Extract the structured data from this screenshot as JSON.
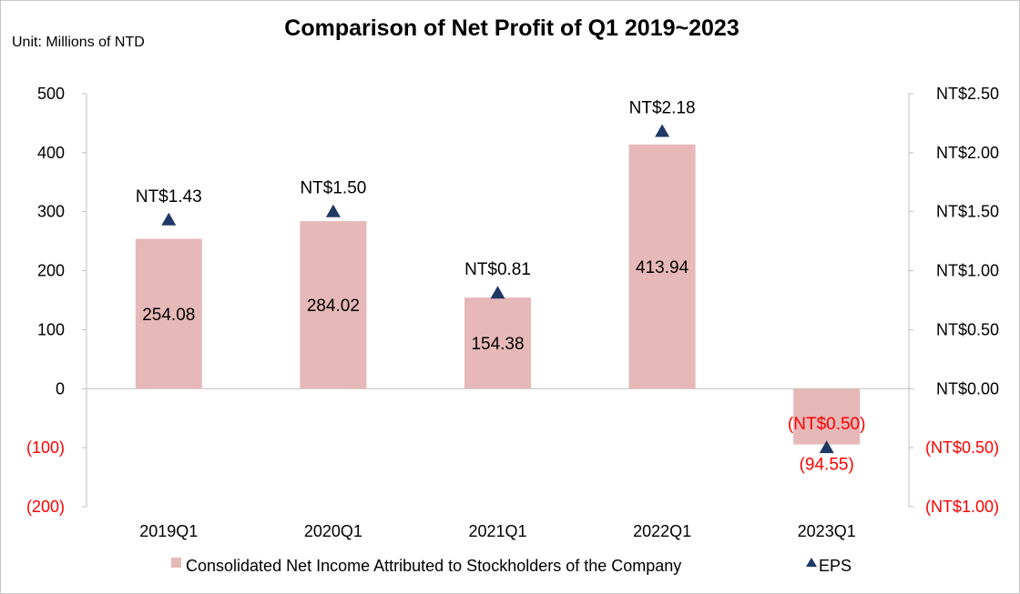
{
  "chart_data": {
    "type": "bar",
    "title": "Comparison of Net Profit of Q1 2019~2023",
    "unit_label": "Unit: Millions of NTD",
    "categories": [
      "2019Q1",
      "2020Q1",
      "2021Q1",
      "2022Q1",
      "2023Q1"
    ],
    "series": [
      {
        "name": "Consolidated Net Income Attributed to Stockholders of the Company",
        "kind": "bar",
        "axis": "left",
        "values": [
          254.08,
          284.02,
          154.38,
          413.94,
          -94.55
        ],
        "labels": [
          "254.08",
          "284.02",
          "154.38",
          "413.94",
          "(94.55)"
        ],
        "color": "#e6b8b7"
      },
      {
        "name": "EPS",
        "kind": "marker-triangle",
        "axis": "right",
        "values": [
          1.43,
          1.5,
          0.81,
          2.18,
          -0.5
        ],
        "labels": [
          "NT$1.43",
          "NT$1.50",
          "NT$0.81",
          "NT$2.18",
          "(NT$0.50)"
        ],
        "color": "#1f3864"
      }
    ],
    "y_left": {
      "ylim": [
        -200,
        500
      ],
      "ticks": [
        500,
        400,
        300,
        200,
        100,
        0,
        -100,
        -200
      ],
      "tick_labels": [
        "500",
        "400",
        "300",
        "200",
        "100",
        "0",
        "(100)",
        "(200)"
      ]
    },
    "y_right": {
      "ylim": [
        -1.0,
        2.5
      ],
      "ticks": [
        2.5,
        2.0,
        1.5,
        1.0,
        0.5,
        0.0,
        -0.5,
        -1.0
      ],
      "tick_labels": [
        "NT$2.50",
        "NT$2.00",
        "NT$1.50",
        "NT$1.00",
        "NT$0.50",
        "NT$0.00",
        "(NT$0.50)",
        "(NT$1.00)"
      ]
    },
    "negative_color": "#ff0000",
    "axis_color": "#bfbfbf",
    "grid": false,
    "legend_position": "bottom"
  }
}
